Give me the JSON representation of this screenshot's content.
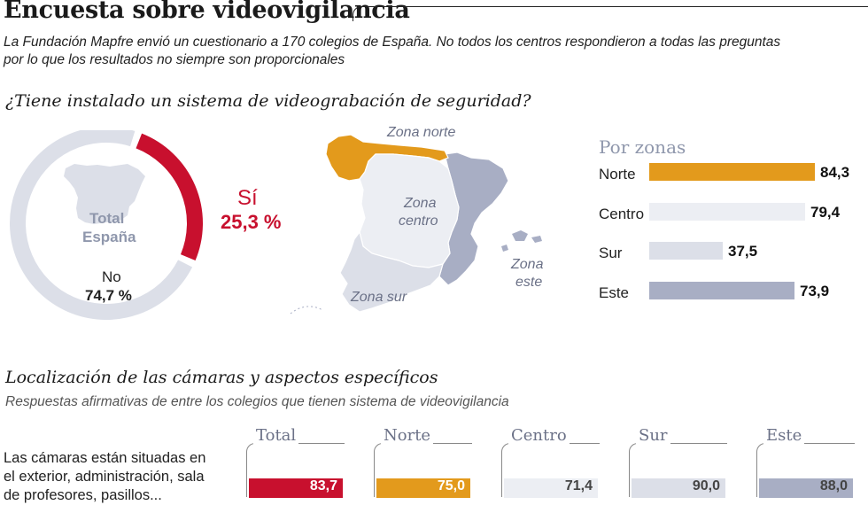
{
  "title": "Encuesta sobre videovigilancia",
  "intro": "La Fundación Mapfre envió un cuestionario a 170 colegios de España. No todos los centros respondieron a todas las preguntas por lo que los resultados no siempre son proporcionales",
  "colors": {
    "red": "#c8102e",
    "norte": "#e39a1c",
    "centro": "#eceef3",
    "sur": "#dcdfe8",
    "este": "#a8aec4",
    "gray_ring": "#dcdfe8"
  },
  "question1": "¿Tiene instalado un sistema de videograbación de seguridad?",
  "pie": {
    "total_line1": "Total",
    "total_line2": "España",
    "yes_label": "Sí",
    "yes_value": "25,3 %",
    "no_label": "No",
    "no_value": "74,7 %"
  },
  "map": {
    "norte": "Zona norte",
    "centro_1": "Zona",
    "centro_2": "centro",
    "sur": "Zona sur",
    "este_1": "Zona",
    "este_2": "este"
  },
  "zones_title": "Por zonas",
  "question2": "Localización de las cámaras y aspectos específicos",
  "question2_sub": "Respuestas afirmativas de entre los colegios que tienen sistema de videovigilancia",
  "row1_label": "Las cámaras están situadas en el exterior, administración, sala de profesores, pasillos...",
  "cards": [
    {
      "name": "Total"
    },
    {
      "name": "Norte"
    },
    {
      "name": "Centro"
    },
    {
      "name": "Sur"
    },
    {
      "name": "Este"
    }
  ],
  "chart_data": [
    {
      "type": "pie",
      "title": "¿Tiene instalado un sistema de videograbación de seguridad?",
      "categories": [
        "Sí",
        "No"
      ],
      "values": [
        25.3,
        74.7
      ],
      "unit": "%",
      "center_label": "Total España"
    },
    {
      "type": "bar",
      "title": "Por zonas",
      "categories": [
        "Norte",
        "Centro",
        "Sur",
        "Este"
      ],
      "values": [
        84.3,
        79.4,
        37.5,
        73.9
      ],
      "value_labels": [
        "84,3",
        "79,4",
        "37,5",
        "73,9"
      ],
      "xlim": [
        0,
        100
      ]
    },
    {
      "type": "bar",
      "title": "Localización de las cámaras y aspectos específicos",
      "categories": [
        "Total",
        "Norte",
        "Centro",
        "Sur",
        "Este"
      ],
      "values": [
        83.7,
        75.0,
        71.4,
        90.0,
        88.0
      ],
      "value_labels": [
        "83,7",
        "75,0",
        "71,4",
        "90,0",
        "88,0"
      ],
      "row_label": "Las cámaras están situadas en el exterior, administración, sala de profesores, pasillos..."
    }
  ]
}
